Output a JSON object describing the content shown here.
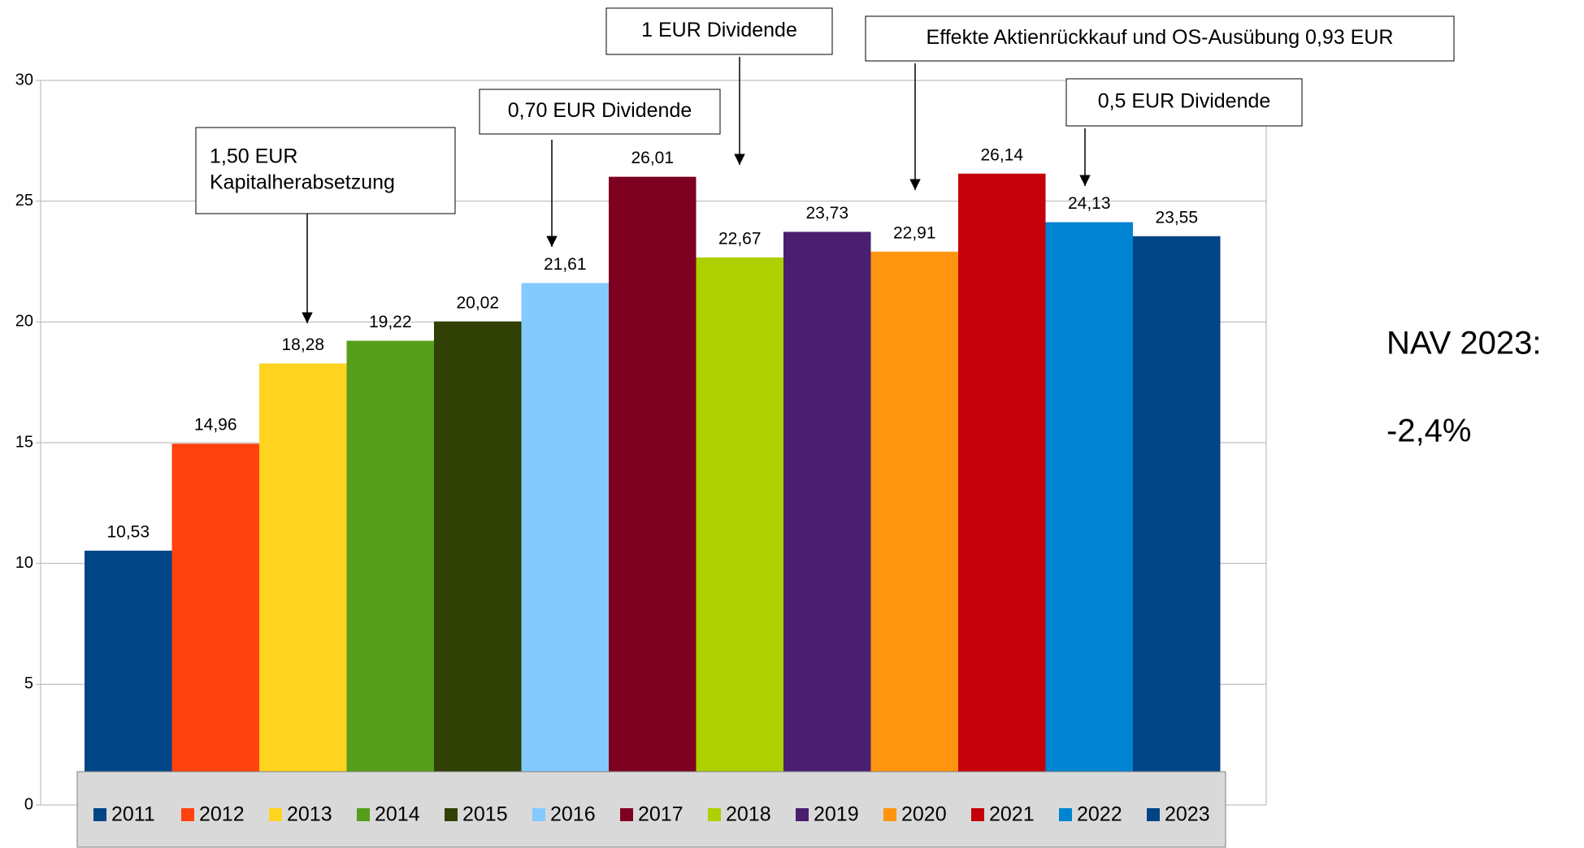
{
  "chart_data": {
    "type": "bar",
    "series": [
      {
        "name": "2011",
        "color": "#004586",
        "values": [
          10.53
        ],
        "value_labels": [
          "10,53"
        ]
      },
      {
        "name": "2012",
        "color": "#ff420e",
        "values": [
          14.96
        ],
        "value_labels": [
          "14,96"
        ]
      },
      {
        "name": "2013",
        "color": "#ffd320",
        "values": [
          18.28
        ],
        "value_labels": [
          "18,28"
        ]
      },
      {
        "name": "2014",
        "color": "#579d1c",
        "values": [
          19.22
        ],
        "value_labels": [
          "19,22"
        ]
      },
      {
        "name": "2015",
        "color": "#314004",
        "values": [
          20.02
        ],
        "value_labels": [
          "20,02"
        ]
      },
      {
        "name": "2016",
        "color": "#83caff",
        "values": [
          21.61
        ],
        "value_labels": [
          "21,61"
        ]
      },
      {
        "name": "2017",
        "color": "#7e0021",
        "values": [
          26.01
        ],
        "value_labels": [
          "26,01"
        ]
      },
      {
        "name": "2018",
        "color": "#aecf00",
        "values": [
          22.67
        ],
        "value_labels": [
          "22,67"
        ]
      },
      {
        "name": "2019",
        "color": "#4b1f6f",
        "values": [
          23.73
        ],
        "value_labels": [
          "23,73"
        ]
      },
      {
        "name": "2020",
        "color": "#ff950e",
        "values": [
          22.91
        ],
        "value_labels": [
          "22,91"
        ]
      },
      {
        "name": "2021",
        "color": "#c5000b",
        "values": [
          26.14
        ],
        "value_labels": [
          "26,14"
        ]
      },
      {
        "name": "2022",
        "color": "#0084d1",
        "values": [
          24.13
        ],
        "value_labels": [
          "24,13"
        ]
      },
      {
        "name": "2023",
        "color": "#004586",
        "values": [
          23.55
        ],
        "value_labels": [
          "23,55"
        ]
      }
    ],
    "ylim": [
      0,
      30
    ],
    "yticks": [
      0,
      5,
      10,
      15,
      20,
      25,
      30
    ],
    "grid": true,
    "legend": "bottom",
    "annotations": [
      {
        "lines": [
          "1,50 EUR",
          "Kapitalherabsetzung"
        ]
      },
      {
        "lines": [
          "0,70 EUR Dividende"
        ]
      },
      {
        "lines": [
          "1 EUR Dividende"
        ]
      },
      {
        "lines": [
          "Effekte Aktienrückkauf und OS-Ausübung 0,93 EUR"
        ]
      },
      {
        "lines": [
          "0,5 EUR Dividende"
        ]
      }
    ],
    "side_text": [
      "NAV 2023:",
      "-2,4%"
    ]
  }
}
